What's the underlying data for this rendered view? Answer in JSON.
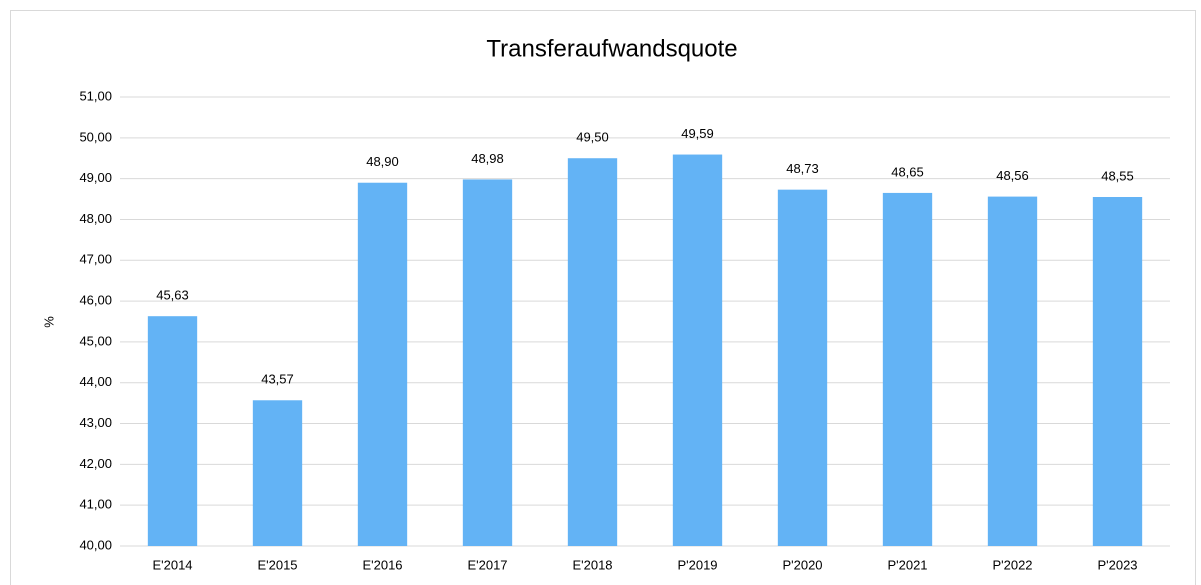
{
  "chart_data": {
    "type": "bar",
    "title": "Transferaufwandsquote",
    "y_label": "%",
    "categories": [
      "E'2014",
      "E'2015",
      "E'2016",
      "E'2017",
      "E'2018",
      "P'2019",
      "P'2020",
      "P'2021",
      "P'2022",
      "P'2023"
    ],
    "values": [
      45.63,
      43.57,
      48.9,
      48.98,
      49.5,
      49.59,
      48.73,
      48.65,
      48.56,
      48.55
    ],
    "value_labels": [
      "45,63",
      "43,57",
      "48,90",
      "48,98",
      "49,50",
      "49,59",
      "48,73",
      "48,65",
      "48,56",
      "48,55"
    ],
    "color": "#63b3f5",
    "ylim": [
      40,
      51
    ],
    "yticks": [
      {
        "value": 40,
        "label": "40,00"
      },
      {
        "value": 41,
        "label": "41,00"
      },
      {
        "value": 42,
        "label": "42,00"
      },
      {
        "value": 43,
        "label": "43,00"
      },
      {
        "value": 44,
        "label": "44,00"
      },
      {
        "value": 45,
        "label": "45,00"
      },
      {
        "value": 46,
        "label": "46,00"
      },
      {
        "value": 47,
        "label": "47,00"
      },
      {
        "value": 48,
        "label": "48,00"
      },
      {
        "value": 49,
        "label": "49,00"
      },
      {
        "value": 50,
        "label": "50,00"
      },
      {
        "value": 51,
        "label": "51,00"
      }
    ],
    "grid": true
  }
}
